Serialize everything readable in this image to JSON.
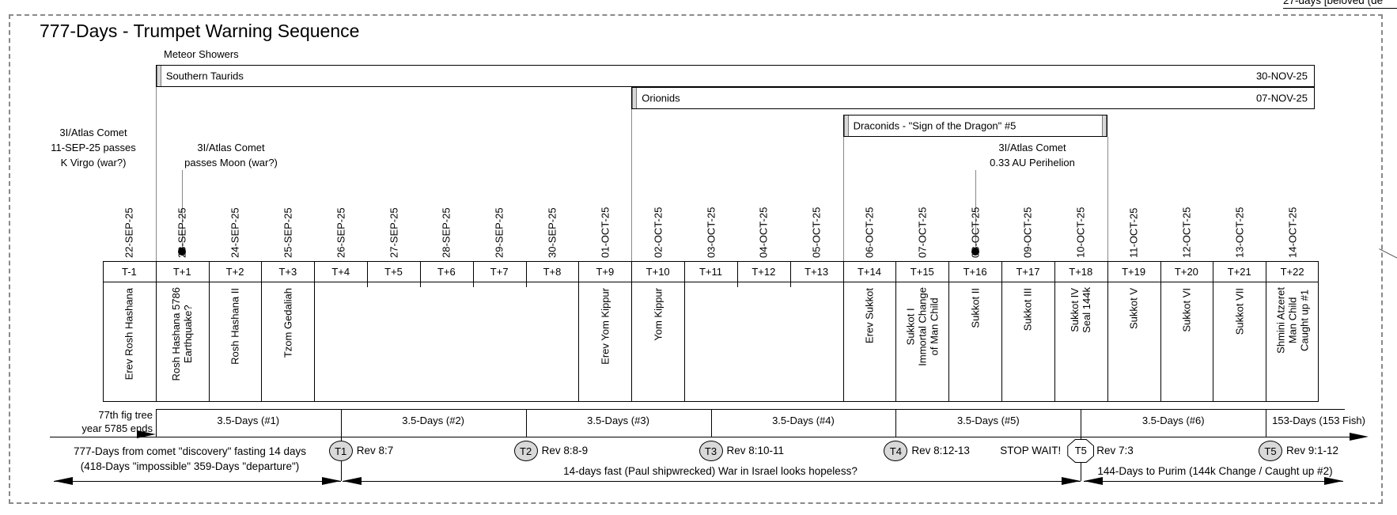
{
  "corner_note": "27-days [beloved (de",
  "title": "777-Days - Trumpet Warning Sequence",
  "meteor_header": "Meteor Showers",
  "meteor_showers": [
    {
      "name": "Southern Taurids",
      "end_date": "30-NOV-25"
    },
    {
      "name": "Orionids",
      "end_date": "07-NOV-25"
    },
    {
      "name": "Draconids - \"Sign of the Dragon\" #5",
      "end_date": ""
    }
  ],
  "comet_notes": [
    {
      "id": "virgo",
      "lines": [
        "3I/Atlas Comet",
        "11-SEP-25 passes",
        "K Virgo (war?)"
      ]
    },
    {
      "id": "moon",
      "lines": [
        "3I/Atlas Comet",
        "passes Moon (war?)"
      ]
    },
    {
      "id": "perihelion",
      "lines": [
        "3I/Atlas Comet",
        "0.33 AU Perihelion"
      ]
    }
  ],
  "columns": [
    {
      "t": "T-1",
      "date": "22-SEP-25",
      "event": [
        "Erev Rosh Hashana"
      ]
    },
    {
      "t": "T+1",
      "date": "23-SEP-25",
      "event": [
        "Rosh Hashana 5786",
        "Earthquake?"
      ],
      "dot": true
    },
    {
      "t": "T+2",
      "date": "24-SEP-25",
      "event": [
        "Rosh Hashana II"
      ]
    },
    {
      "t": "T+3",
      "date": "25-SEP-25",
      "event": [
        "Tzom Gedaliah"
      ]
    },
    {
      "t": "T+4",
      "date": "26-SEP-25",
      "event": []
    },
    {
      "t": "T+5",
      "date": "27-SEP-25",
      "event": []
    },
    {
      "t": "T+6",
      "date": "28-SEP-25",
      "event": []
    },
    {
      "t": "T+7",
      "date": "29-SEP-25",
      "event": []
    },
    {
      "t": "T+8",
      "date": "30-SEP-25",
      "event": []
    },
    {
      "t": "T+9",
      "date": "01-OCT-25",
      "event": [
        "Erev Yom Kippur"
      ]
    },
    {
      "t": "T+10",
      "date": "02-OCT-25",
      "event": [
        "Yom Kippur"
      ]
    },
    {
      "t": "T+11",
      "date": "03-OCT-25",
      "event": []
    },
    {
      "t": "T+12",
      "date": "04-OCT-25",
      "event": []
    },
    {
      "t": "T+13",
      "date": "05-OCT-25",
      "event": []
    },
    {
      "t": "T+14",
      "date": "06-OCT-25",
      "event": [
        "Erev Sukkot"
      ]
    },
    {
      "t": "T+15",
      "date": "07-OCT-25",
      "event": [
        "Sukkot I",
        "Immortal Change",
        "of Man Child"
      ]
    },
    {
      "t": "T+16",
      "date": "08-OCT-25",
      "event": [
        "Sukkot II"
      ],
      "dot": true
    },
    {
      "t": "T+17",
      "date": "09-OCT-25",
      "event": [
        "Sukkot III"
      ]
    },
    {
      "t": "T+18",
      "date": "10-OCT-25",
      "event": [
        "Sukkot IV",
        "Seal 144k"
      ]
    },
    {
      "t": "T+19",
      "date": "11-OCT-25",
      "event": [
        "Sukkot V"
      ]
    },
    {
      "t": "T+20",
      "date": "12-OCT-25",
      "event": [
        "Sukkot VI"
      ]
    },
    {
      "t": "T+21",
      "date": "13-OCT-25",
      "event": [
        "Sukkot VII"
      ]
    },
    {
      "t": "T+22",
      "date": "14-OCT-25",
      "event": [
        "Shmini Atzeret",
        "Man Child",
        "Caught up #1"
      ]
    }
  ],
  "fig_note_lines": [
    "77th fig tree",
    "year 5785 ends"
  ],
  "periods": [
    "3.5-Days (#1)",
    "3.5-Days (#2)",
    "3.5-Days (#3)",
    "3.5-Days (#4)",
    "3.5-Days (#5)",
    "3.5-Days (#6)",
    "153-Days (153 Fish)"
  ],
  "trumpets": [
    {
      "label": "T1",
      "ref": "Rev 8:7",
      "shape": "ellipse"
    },
    {
      "label": "T2",
      "ref": "Rev 8:8-9",
      "shape": "ellipse"
    },
    {
      "label": "T3",
      "ref": "Rev 8:10-11",
      "shape": "ellipse"
    },
    {
      "label": "T4",
      "ref": "Rev 8:12-13",
      "shape": "ellipse"
    },
    {
      "label": "T5",
      "ref": "Rev 7:3",
      "shape": "octagon",
      "prefix": "STOP WAIT!"
    },
    {
      "label": "T5",
      "ref": "Rev 9:1-12",
      "shape": "ellipse"
    }
  ],
  "span_notes": {
    "days777": [
      "777-Days from comet \"discovery\" fasting 14 days",
      "(418-Days \"impossible\" 359-Days \"departure\")"
    ],
    "days14": "14-days fast (Paul shipwrecked) War in Israel looks hopeless?",
    "days144": "144-Days to Purim (144k Change / Caught up #2)"
  },
  "colors": {
    "marker_fill": "#d9d9d9",
    "cap_fill": "#d8d8d8",
    "gray_line": "#888888",
    "ink": "#000000"
  }
}
